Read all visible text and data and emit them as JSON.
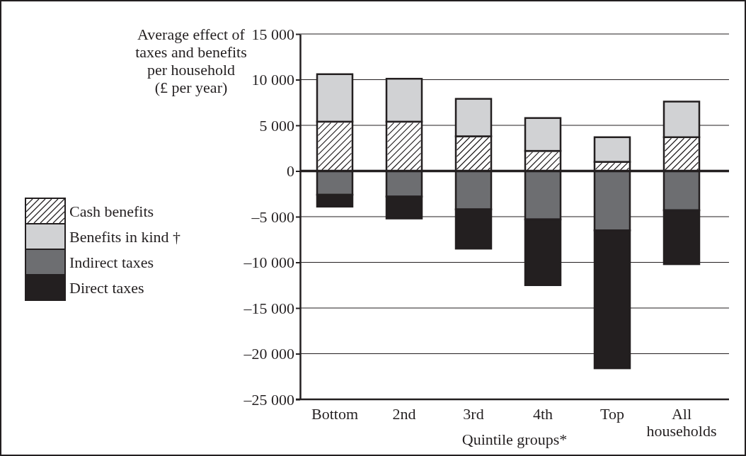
{
  "chart_data": {
    "type": "bar",
    "stacked": true,
    "ylabel": "Average effect of taxes and benefits per household (£ per year)",
    "xlabel": "Quintile groups*",
    "categories": [
      "Bottom",
      "2nd",
      "3rd",
      "4th",
      "Top",
      "All households"
    ],
    "series": [
      {
        "name": "Cash benefits",
        "color": "#ffffff",
        "values": [
          5400,
          5400,
          3800,
          2200,
          1000,
          3700
        ]
      },
      {
        "name": "Benefits in kind †",
        "color": "#d1d2d4",
        "values": [
          5200,
          4700,
          4100,
          3600,
          2700,
          3900
        ]
      },
      {
        "name": "Indirect taxes",
        "color": "#6d6e71",
        "values": [
          -2600,
          -2800,
          -4200,
          -5300,
          -6500,
          -4300
        ]
      },
      {
        "name": "Direct taxes",
        "color": "#231f20",
        "values": [
          -1300,
          -2400,
          -4300,
          -7200,
          -15100,
          -5900
        ]
      }
    ],
    "ylim": [
      -25000,
      15000
    ],
    "yticks": [
      {
        "value": -25000,
        "label": "–25 000"
      },
      {
        "value": -20000,
        "label": "–20 000"
      },
      {
        "value": -15000,
        "label": "–15 000"
      },
      {
        "value": -10000,
        "label": "–10 000"
      },
      {
        "value": -5000,
        "label": "–5 000"
      },
      0,
      {
        "value": 5000,
        "label": "5 000"
      },
      {
        "value": 10000,
        "label": "10 000"
      },
      {
        "value": 15000,
        "label": "15 000"
      }
    ],
    "grid": "y",
    "legend": "left"
  }
}
